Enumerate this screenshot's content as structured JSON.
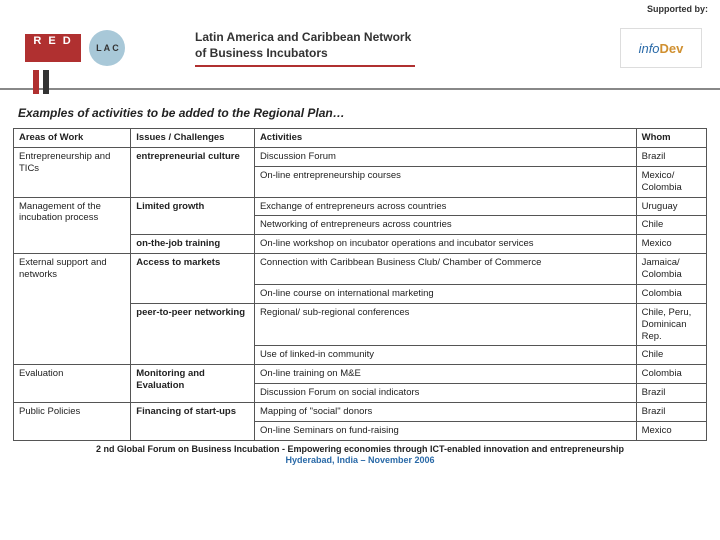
{
  "header": {
    "supported_label": "Supported by:",
    "title": "Latin America and Caribbean Network of Business Incubators",
    "logo_red_top": "R E D",
    "logo_red_bottom": "",
    "logo_lac": "L A C",
    "logo_right_text": "infoDev"
  },
  "subtitle": "Examples of activities to be added to the Regional Plan…",
  "table": {
    "headers": [
      "Areas of Work",
      "Issues / Challenges",
      "Activities",
      "Whom"
    ],
    "rows": [
      {
        "c1": "Entrepreneurship and TICs",
        "c1_rs": 2,
        "c2": "entrepreneurial culture",
        "c2_rs": 2,
        "c3": "Discussion Forum",
        "c4": "Brazil"
      },
      {
        "c3": "On-line entrepreneurship courses",
        "c4": "Mexico/ Colombia"
      },
      {
        "c1": "Management of the incubation process",
        "c1_rs": 3,
        "c2": "Limited growth",
        "c2_rs": 2,
        "c3": "Exchange of entrepreneurs across countries",
        "c4": "Uruguay"
      },
      {
        "c3": "Networking of entrepreneurs across countries",
        "c4": "Chile"
      },
      {
        "c2": "on-the-job training",
        "c2_rs": 1,
        "c3": "On-line workshop on incubator operations and incubator services",
        "c4": "Mexico"
      },
      {
        "c1": "External support and networks",
        "c1_rs": 4,
        "c2": "Access to markets",
        "c2_rs": 2,
        "c3": "Connection with Caribbean Business Club/ Chamber of Commerce",
        "c4": "Jamaica/ Colombia"
      },
      {
        "c3": "On-line course on international marketing",
        "c4": "Colombia"
      },
      {
        "c2": "peer-to-peer networking",
        "c2_rs": 2,
        "c3": "Regional/ sub-regional conferences",
        "c4": "Chile, Peru, Dominican Rep."
      },
      {
        "c3": "Use of linked-in community",
        "c4": "Chile"
      },
      {
        "c1": "Evaluation",
        "c1_rs": 2,
        "c2": "Monitoring and Evaluation",
        "c2_rs": 2,
        "c3": "On-line training on M&E",
        "c4": "Colombia"
      },
      {
        "c3": "Discussion Forum on social  indicators",
        "c4": "Brazil"
      },
      {
        "c1": "Public Policies",
        "c1_rs": 2,
        "c2": "Financing of start-ups",
        "c2_rs": 2,
        "c3": "Mapping of \"social\" donors",
        "c4": "Brazil"
      },
      {
        "c3": "On-line Seminars on fund-raising",
        "c4": "Mexico"
      }
    ]
  },
  "footer": {
    "line1": "2 nd Global Forum on Business Incubation - Empowering economies through ICT-enabled innovation and entrepreneurship",
    "line2": "Hyderabad, India – November 2006"
  }
}
